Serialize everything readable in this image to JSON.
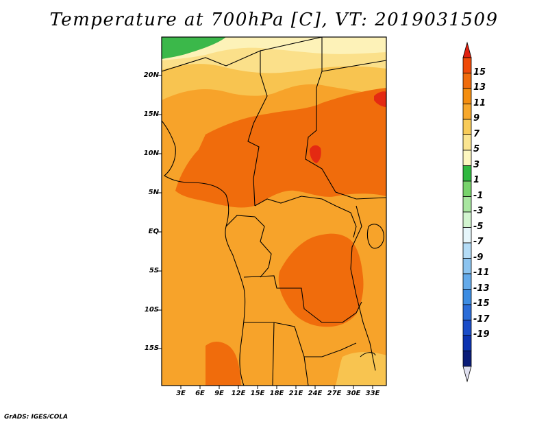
{
  "title": "Temperature at 700hPa [C], VT: 2019031509",
  "credit": "GrADS: IGES/COLA",
  "lat_labels": [
    "20N",
    "15N",
    "10N",
    "5N",
    "EQ",
    "5S",
    "10S",
    "15S"
  ],
  "lon_labels": [
    "3E",
    "6E",
    "9E",
    "12E",
    "15E",
    "18E",
    "21E",
    "24E",
    "27E",
    "30E",
    "33E"
  ],
  "colorbar": {
    "labels": [
      "15",
      "13",
      "11",
      "9",
      "7",
      "5",
      "3",
      "1",
      "-1",
      "-3",
      "-5",
      "-7",
      "-9",
      "-11",
      "-13",
      "-15",
      "-17",
      "-19"
    ],
    "colors": [
      "#e02010",
      "#f04a08",
      "#f06c0c",
      "#f48e10",
      "#f7a82c",
      "#f8cb58",
      "#fbe590",
      "#fdf7c0",
      "#30b840",
      "#78d36c",
      "#a8e6a0",
      "#d2f5d0",
      "#e6f6fb",
      "#b4dcf6",
      "#8cc4f0",
      "#64aaea",
      "#3c8ce2",
      "#2a6cd8",
      "#1a4cc8",
      "#0c32b0",
      "#0a1c78",
      "#e0e0f0"
    ]
  },
  "map": {
    "lon_range": [
      "0E",
      "35E"
    ],
    "lat_range": [
      "19S",
      "24N"
    ],
    "variable": "Temperature at 700hPa",
    "units": "C",
    "valid_time": "2019031509"
  }
}
